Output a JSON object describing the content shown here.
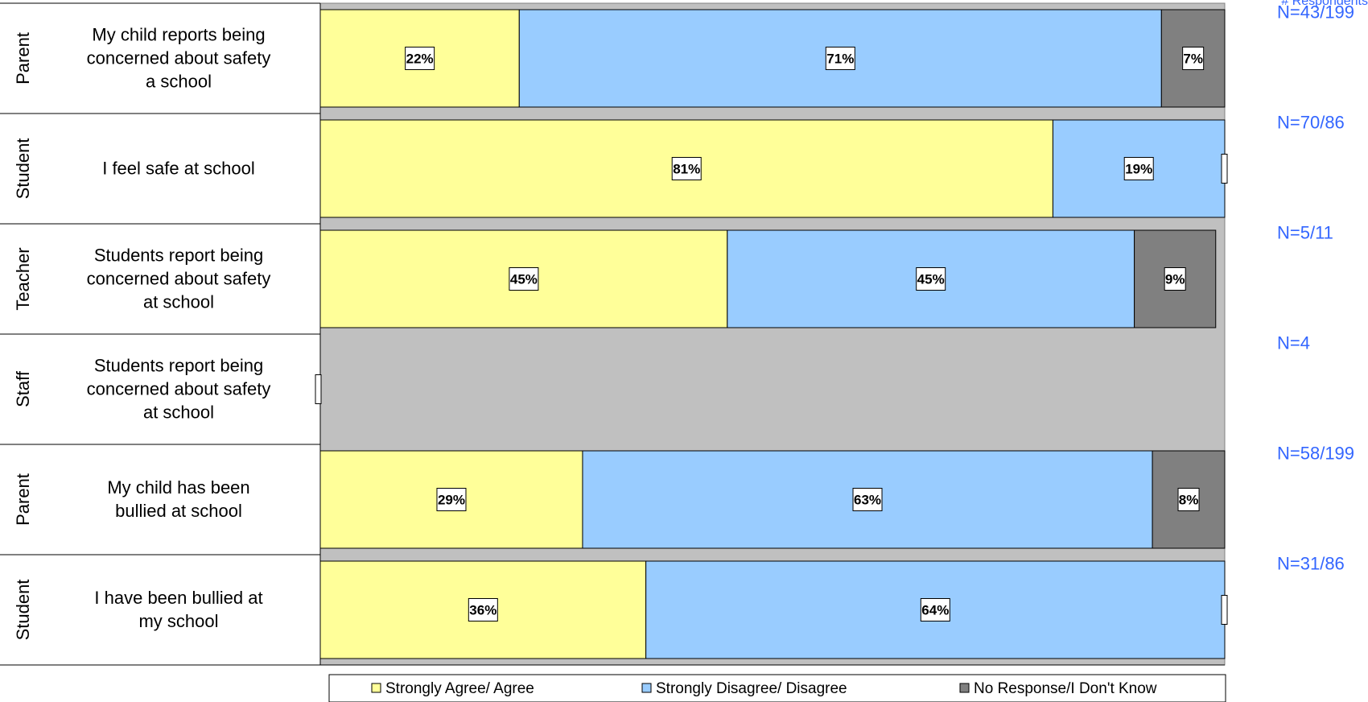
{
  "chart_data": {
    "type": "bar",
    "orientation": "horizontal",
    "stacked": "percent",
    "header": "# Respondents",
    "rows": [
      {
        "group": "Parent",
        "question": "My child reports being concerned about  safety a school",
        "n": "N=43/199"
      },
      {
        "group": "Student",
        "question": "I feel safe at school",
        "n": "N=70/86"
      },
      {
        "group": "Teacher",
        "question": "Students report being concerned about safety at school",
        "n": "N=5/11"
      },
      {
        "group": "Staff",
        "question": "Students report being concerned about safety at school",
        "n": "N=4"
      },
      {
        "group": "Parent",
        "question": "My child has been bullied at school",
        "n": "N=58/199"
      },
      {
        "group": "Student",
        "question": "I have been bullied at my school",
        "n": "N=31/86"
      }
    ],
    "series": [
      {
        "name": "Strongly Agree/ Agree",
        "values": [
          22,
          81,
          45,
          null,
          29,
          36
        ],
        "labels": [
          "22%",
          "81%",
          "45%",
          "",
          "29%",
          "36%"
        ]
      },
      {
        "name": "Strongly Disagree/ Disagree",
        "values": [
          71,
          19,
          45,
          null,
          63,
          64
        ],
        "labels": [
          "71%",
          "19%",
          "45%",
          "",
          "63%",
          "64%"
        ]
      },
      {
        "name": "No Response/I Don't Know",
        "values": [
          7,
          0,
          9,
          null,
          8,
          0
        ],
        "labels": [
          "7%",
          "",
          "9%",
          "",
          "8%",
          ""
        ]
      }
    ],
    "xlim": [
      0,
      100
    ],
    "legend_position": "bottom",
    "colors": {
      "agree": "#ffff99",
      "disagree": "#99ccff",
      "no_response": "#808080",
      "plot_background": "#c0c0c0",
      "n_text": "#3366ff"
    }
  }
}
